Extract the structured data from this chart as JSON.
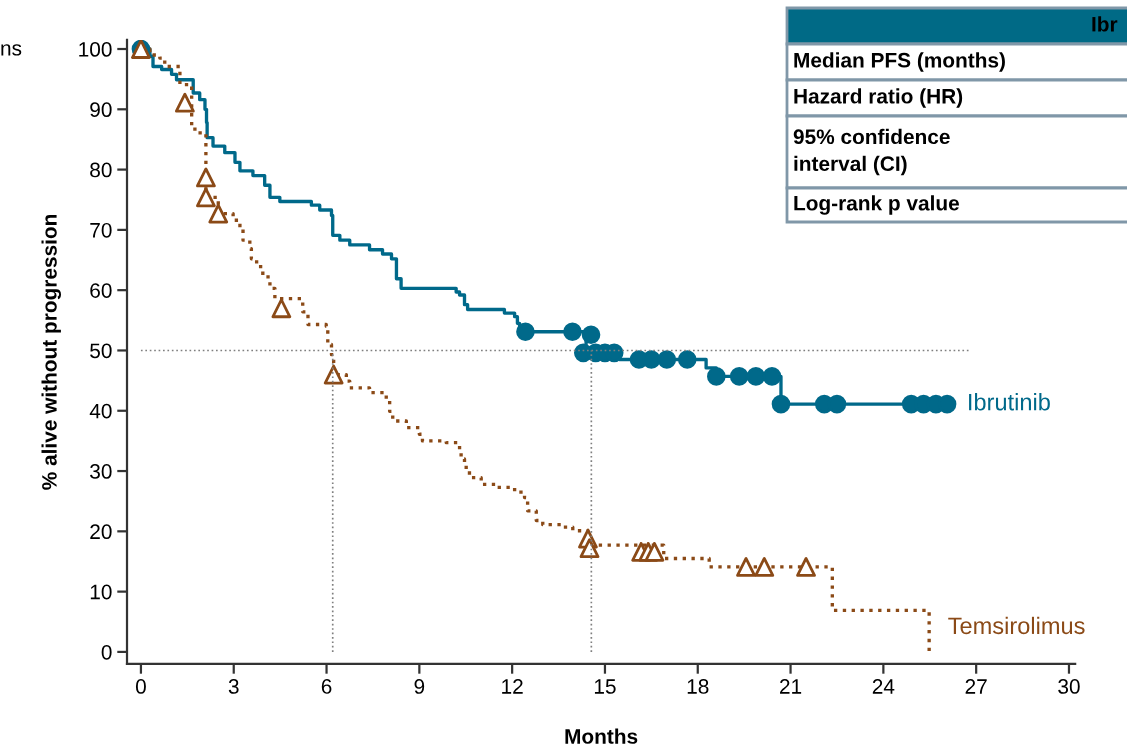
{
  "chart_data": {
    "type": "step",
    "xlabel": "Months",
    "ylabel": "% alive without progression",
    "xlim": [
      -0.45,
      30.2
    ],
    "ylim": [
      -2,
      101.5
    ],
    "xticks": [
      0,
      3,
      6,
      9,
      12,
      15,
      18,
      21,
      24,
      27,
      30
    ],
    "yticks": [
      0,
      10,
      20,
      30,
      40,
      50,
      60,
      70,
      80,
      90,
      100
    ],
    "grid": false,
    "legend": false,
    "annotations": [
      "ns",
      "Ibr",
      "Median PFS (months)",
      "Hazard ratio (HR)",
      "95% confidence\ninterval (CI)",
      "Log-rank p value"
    ],
    "series": [
      {
        "type": "line",
        "color": "#7f7f7f",
        "line_style": "dotted",
        "marker": "none",
        "x": [
          0,
          26.8
        ],
        "values": [
          50,
          50
        ]
      },
      {
        "type": "line",
        "color": "#7f7f7f",
        "line_style": "dotted",
        "marker": "none",
        "x": [
          6.2,
          6.2
        ],
        "values": [
          0,
          50
        ]
      },
      {
        "type": "line",
        "color": "#7f7f7f",
        "line_style": "dotted",
        "marker": "none",
        "x": [
          14.56,
          14.56
        ],
        "values": [
          0,
          50
        ]
      },
      {
        "name": "Ibrutinib",
        "color": "#00698a",
        "line_style": "solid",
        "marker": "none",
        "x": [
          0,
          0.29,
          0.39,
          0.67,
          0.99,
          1.15,
          1.69,
          1.9,
          2.07,
          2.12,
          2.14,
          2.33,
          2.71,
          3.04,
          3.2,
          3.62,
          4.0,
          4.17,
          4.49,
          5.51,
          5.78,
          6.16,
          6.2,
          6.43,
          6.75,
          7.39,
          7.81,
          8.1,
          8.26,
          8.41,
          10.19,
          10.3,
          10.46,
          10.56,
          11.75,
          12.08,
          12.17,
          12.24,
          14.39,
          15.47,
          18.27,
          18.6,
          20.69,
          26.1
        ],
        "values": [
          100,
          98.8,
          97.1,
          96.6,
          95.8,
          94.9,
          92.7,
          91.6,
          90,
          87.8,
          85.3,
          83.9,
          82.8,
          81.2,
          79.8,
          79,
          77.4,
          75.4,
          74.7,
          74.1,
          73.3,
          72.4,
          69.1,
          68.3,
          67.5,
          66.7,
          66,
          65.2,
          61.9,
          60.3,
          59.7,
          59.2,
          57.6,
          56.8,
          56.2,
          55.6,
          54.5,
          53.1,
          49.6,
          48.5,
          47.1,
          45.7,
          41.1,
          41.1
        ]
      },
      {
        "name": "Temsirolimus",
        "color": "#8b4a17",
        "line_style": "dotted",
        "marker": "none",
        "x": [
          0,
          0.29,
          0.61,
          0.77,
          1.26,
          1.64,
          1.85,
          2.1,
          2.5,
          2.98,
          3.2,
          3.3,
          3.52,
          3.57,
          3.74,
          3.94,
          4.17,
          4.33,
          5.23,
          5.4,
          5.99,
          6.04,
          6.16,
          6.23,
          6.64,
          6.75,
          7.39,
          7.93,
          8.04,
          8.14,
          8.58,
          9.0,
          9.1,
          9.87,
          10.3,
          10.35,
          10.46,
          10.62,
          11.0,
          11.53,
          12.08,
          12.4,
          12.5,
          12.78,
          12.99,
          13.63,
          13.96,
          14.45,
          14.5,
          16.9,
          18.37,
          22.35,
          25.48
        ],
        "values": [
          100,
          99,
          98.5,
          97.1,
          94.1,
          86.7,
          86.1,
          75.4,
          72.7,
          71.6,
          70.2,
          68.3,
          66.9,
          65.2,
          63.9,
          62.2,
          60.3,
          58.6,
          56.4,
          54.3,
          54.0,
          51.0,
          49.3,
          46.0,
          44.9,
          43.8,
          43.0,
          41.9,
          39.9,
          38.3,
          37.2,
          36.1,
          35.0,
          34.7,
          33.6,
          32.0,
          30.6,
          28.9,
          27.8,
          27.3,
          26.5,
          25.6,
          23.4,
          21.8,
          21.1,
          20.7,
          20.1,
          18.8,
          17.7,
          15.5,
          14.1,
          6.9,
          0
        ]
      },
      {
        "type": "scatter",
        "color": "#00698a",
        "marker": "circle",
        "x": [
          0,
          12.43,
          13.95,
          14.55,
          14.3,
          14.7,
          15.0,
          15.3,
          16.1,
          16.5,
          17.0,
          17.66,
          18.6,
          19.34,
          19.88,
          20.4,
          20.69,
          22.09,
          22.5,
          24.9,
          25.3,
          25.7,
          26.06
        ],
        "values": [
          100,
          53.1,
          53.1,
          52.6,
          49.6,
          49.6,
          49.6,
          49.6,
          48.5,
          48.5,
          48.5,
          48.5,
          45.7,
          45.7,
          45.7,
          45.7,
          41.1,
          41.1,
          41.1,
          41.1,
          41.1,
          41.1,
          41.1
        ]
      },
      {
        "type": "scatter",
        "color": "#8b4a17",
        "marker": "triangle",
        "x": [
          0,
          1.42,
          2.1,
          2.1,
          2.5,
          4.54,
          6.23,
          14.45,
          14.5,
          16.17,
          16.4,
          16.6,
          19.56,
          20.15,
          21.5
        ],
        "values": [
          100,
          91.1,
          78.7,
          75.4,
          72.7,
          57.0,
          46.0,
          18.8,
          17.2,
          16.6,
          16.6,
          16.6,
          14.1,
          14.1,
          14.1
        ]
      }
    ]
  }
}
